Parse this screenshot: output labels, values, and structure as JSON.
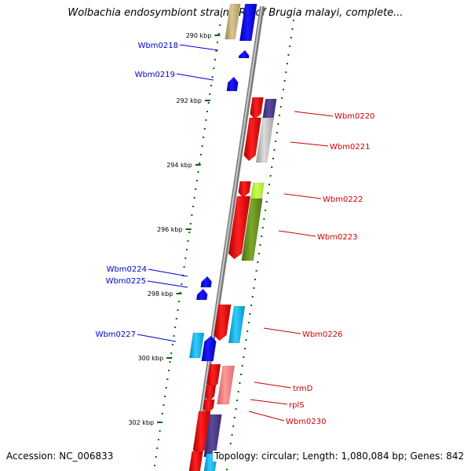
{
  "title": "Wolbachia endosymbiont strain TRS of Brugia malayi, complete...",
  "footer": {
    "accession_label": "Accession: NC_006833",
    "summary_label": "Topology: circular; Length: 1,080,084 bp; Genes: 842"
  },
  "colors": {
    "backbone": "#808080",
    "tick": "#006400",
    "left_label": "#0000cc",
    "right_label": "#cc0000"
  },
  "axis_ticks": [
    {
      "label": "290 kbp"
    },
    {
      "label": "292 kbp"
    },
    {
      "label": "294 kbp"
    },
    {
      "label": "296 kbp"
    },
    {
      "label": "298 kbp"
    },
    {
      "label": "300 kbp"
    },
    {
      "label": "302 kbp"
    }
  ],
  "gene_labels": [
    {
      "text": "Wbm0218",
      "side": "left"
    },
    {
      "text": "Wbm0219",
      "side": "left"
    },
    {
      "text": "Wbm0220",
      "side": "right"
    },
    {
      "text": "Wbm0221",
      "side": "right"
    },
    {
      "text": "Wbm0222",
      "side": "right"
    },
    {
      "text": "Wbm0223",
      "side": "right"
    },
    {
      "text": "Wbm0224",
      "side": "left"
    },
    {
      "text": "Wbm0225",
      "side": "left"
    },
    {
      "text": "Wbm0226",
      "side": "right"
    },
    {
      "text": "Wbm0227",
      "side": "left"
    },
    {
      "text": "trmD",
      "side": "right"
    },
    {
      "text": "rplS",
      "side": "right"
    },
    {
      "text": "Wbm0230",
      "side": "right"
    }
  ],
  "feature_colors": [
    "#ff0000",
    "#0000ff",
    "#00bfff",
    "#4b3c8c",
    "#9acd32",
    "#c0c0c0",
    "#f08080",
    "#b8a870"
  ]
}
